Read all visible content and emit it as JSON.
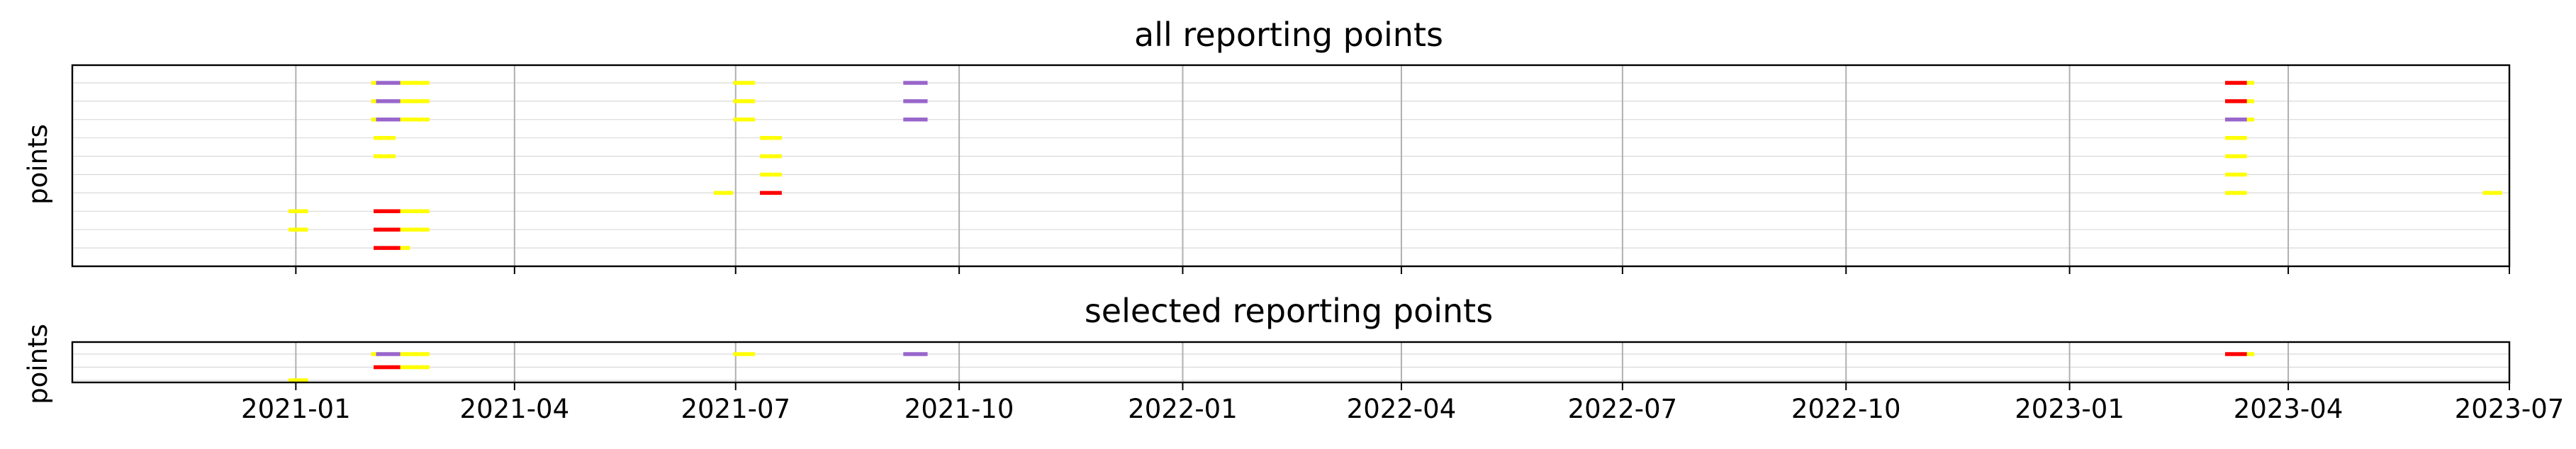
{
  "chart_data": [
    {
      "type": "timeline",
      "title": "all reporting points",
      "ylabel": "points",
      "xlabel": "",
      "xlim": [
        "2020-10-01",
        "2023-07-01"
      ],
      "grid": true,
      "show_xtick_labels": false,
      "colors": {
        "yellow": "#ffff00",
        "red": "#ff0000",
        "purple": "#9966cc"
      },
      "rows": [
        {
          "segments": [
            {
              "start": "2021-02-01",
              "end": "2021-02-03",
              "color": "yellow"
            },
            {
              "start": "2021-02-03",
              "end": "2021-02-13",
              "color": "purple"
            },
            {
              "start": "2021-02-13",
              "end": "2021-02-25",
              "color": "yellow"
            },
            {
              "start": "2021-06-30",
              "end": "2021-07-09",
              "color": "yellow"
            },
            {
              "start": "2021-09-08",
              "end": "2021-09-18",
              "color": "purple"
            },
            {
              "start": "2023-03-06",
              "end": "2023-03-15",
              "color": "red"
            },
            {
              "start": "2023-03-15",
              "end": "2023-03-18",
              "color": "yellow"
            }
          ]
        },
        {
          "segments": [
            {
              "start": "2021-02-01",
              "end": "2021-02-03",
              "color": "yellow"
            },
            {
              "start": "2021-02-03",
              "end": "2021-02-13",
              "color": "purple"
            },
            {
              "start": "2021-02-13",
              "end": "2021-02-25",
              "color": "yellow"
            },
            {
              "start": "2021-06-30",
              "end": "2021-07-09",
              "color": "yellow"
            },
            {
              "start": "2021-09-08",
              "end": "2021-09-18",
              "color": "purple"
            },
            {
              "start": "2023-03-06",
              "end": "2023-03-15",
              "color": "red"
            },
            {
              "start": "2023-03-15",
              "end": "2023-03-18",
              "color": "yellow"
            }
          ]
        },
        {
          "segments": [
            {
              "start": "2021-02-01",
              "end": "2021-02-03",
              "color": "yellow"
            },
            {
              "start": "2021-02-03",
              "end": "2021-02-13",
              "color": "purple"
            },
            {
              "start": "2021-02-13",
              "end": "2021-02-25",
              "color": "yellow"
            },
            {
              "start": "2021-06-30",
              "end": "2021-07-09",
              "color": "yellow"
            },
            {
              "start": "2021-09-08",
              "end": "2021-09-18",
              "color": "purple"
            },
            {
              "start": "2023-03-06",
              "end": "2023-03-15",
              "color": "purple"
            },
            {
              "start": "2023-03-15",
              "end": "2023-03-18",
              "color": "yellow"
            }
          ]
        },
        {
          "segments": [
            {
              "start": "2021-02-02",
              "end": "2021-02-11",
              "color": "yellow"
            },
            {
              "start": "2021-07-11",
              "end": "2021-07-20",
              "color": "yellow"
            },
            {
              "start": "2023-03-06",
              "end": "2023-03-15",
              "color": "yellow"
            }
          ]
        },
        {
          "segments": [
            {
              "start": "2021-02-02",
              "end": "2021-02-11",
              "color": "yellow"
            },
            {
              "start": "2021-07-11",
              "end": "2021-07-20",
              "color": "yellow"
            },
            {
              "start": "2023-03-06",
              "end": "2023-03-15",
              "color": "yellow"
            }
          ]
        },
        {
          "segments": [
            {
              "start": "2021-07-11",
              "end": "2021-07-20",
              "color": "yellow"
            },
            {
              "start": "2023-03-06",
              "end": "2023-03-15",
              "color": "yellow"
            }
          ]
        },
        {
          "segments": [
            {
              "start": "2021-06-22",
              "end": "2021-06-30",
              "color": "yellow"
            },
            {
              "start": "2021-07-11",
              "end": "2021-07-20",
              "color": "red"
            },
            {
              "start": "2023-03-06",
              "end": "2023-03-15",
              "color": "yellow"
            },
            {
              "start": "2023-06-20",
              "end": "2023-06-28",
              "color": "yellow"
            }
          ]
        },
        {
          "segments": [
            {
              "start": "2020-12-29",
              "end": "2021-01-06",
              "color": "yellow"
            },
            {
              "start": "2021-02-02",
              "end": "2021-02-13",
              "color": "red"
            },
            {
              "start": "2021-02-13",
              "end": "2021-02-25",
              "color": "yellow"
            }
          ]
        },
        {
          "segments": [
            {
              "start": "2020-12-29",
              "end": "2021-01-06",
              "color": "yellow"
            },
            {
              "start": "2021-02-02",
              "end": "2021-02-13",
              "color": "red"
            },
            {
              "start": "2021-02-13",
              "end": "2021-02-25",
              "color": "yellow"
            }
          ]
        },
        {
          "segments": [
            {
              "start": "2021-02-02",
              "end": "2021-02-13",
              "color": "red"
            },
            {
              "start": "2021-02-13",
              "end": "2021-02-17",
              "color": "yellow"
            }
          ]
        },
        {
          "segments": []
        }
      ]
    },
    {
      "type": "timeline",
      "title": "selected reporting points",
      "ylabel": "points",
      "xlabel": "",
      "xlim": [
        "2020-10-01",
        "2023-07-01"
      ],
      "grid": true,
      "show_xtick_labels": true,
      "colors": {
        "yellow": "#ffff00",
        "red": "#ff0000",
        "purple": "#9966cc"
      },
      "rows": [
        {
          "segments": [
            {
              "start": "2021-02-01",
              "end": "2021-02-03",
              "color": "yellow"
            },
            {
              "start": "2021-02-03",
              "end": "2021-02-13",
              "color": "purple"
            },
            {
              "start": "2021-02-13",
              "end": "2021-02-25",
              "color": "yellow"
            },
            {
              "start": "2021-06-30",
              "end": "2021-07-09",
              "color": "yellow"
            },
            {
              "start": "2021-09-08",
              "end": "2021-09-18",
              "color": "purple"
            },
            {
              "start": "2023-03-06",
              "end": "2023-03-15",
              "color": "red"
            },
            {
              "start": "2023-03-15",
              "end": "2023-03-18",
              "color": "yellow"
            }
          ]
        },
        {
          "segments": [
            {
              "start": "2021-02-02",
              "end": "2021-02-13",
              "color": "red"
            },
            {
              "start": "2021-02-13",
              "end": "2021-02-25",
              "color": "yellow"
            }
          ]
        },
        {
          "segments": [
            {
              "start": "2020-12-29",
              "end": "2021-01-06",
              "color": "yellow"
            }
          ]
        }
      ]
    }
  ],
  "x_ticks": [
    {
      "value": "2021-01-01",
      "label": "2021-01"
    },
    {
      "value": "2021-04-01",
      "label": "2021-04"
    },
    {
      "value": "2021-07-01",
      "label": "2021-07"
    },
    {
      "value": "2021-10-01",
      "label": "2021-10"
    },
    {
      "value": "2022-01-01",
      "label": "2022-01"
    },
    {
      "value": "2022-04-01",
      "label": "2022-04"
    },
    {
      "value": "2022-07-01",
      "label": "2022-07"
    },
    {
      "value": "2022-10-01",
      "label": "2022-10"
    },
    {
      "value": "2023-01-01",
      "label": "2023-01"
    },
    {
      "value": "2023-04-01",
      "label": "2023-04"
    },
    {
      "value": "2023-07-01",
      "label": "2023-07"
    }
  ]
}
